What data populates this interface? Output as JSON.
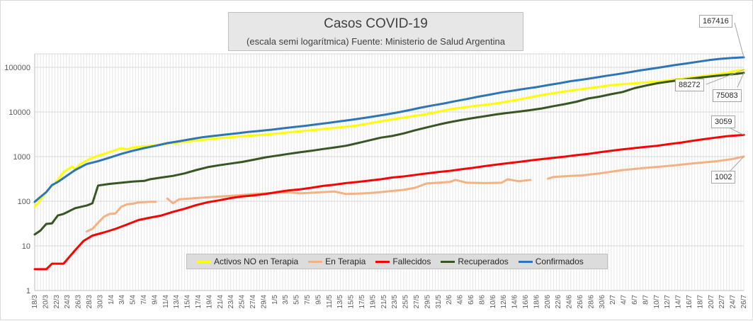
{
  "title": {
    "main": "Casos COVID-19",
    "subtitle": "(escala semi logarítmica) Fuente: Ministerio de Salud Argentina"
  },
  "chart_data": {
    "type": "line",
    "yscale": "log",
    "ylim": [
      1,
      200000
    ],
    "ytick_labels": [
      "1",
      "10",
      "100",
      "1000",
      "10000",
      "100000"
    ],
    "xtick_labels": [
      "18/3",
      "20/3",
      "22/3",
      "24/3",
      "26/3",
      "28/3",
      "30/3",
      "1/4",
      "3/4",
      "5/4",
      "7/4",
      "9/4",
      "11/4",
      "13/4",
      "15/4",
      "17/4",
      "19/4",
      "21/4",
      "23/4",
      "25/4",
      "27/4",
      "29/4",
      "1/5",
      "3/5",
      "5/5",
      "7/5",
      "9/5",
      "11/5",
      "13/5",
      "15/5",
      "17/5",
      "19/5",
      "21/5",
      "23/5",
      "25/5",
      "27/5",
      "29/5",
      "31/5",
      "2/6",
      "4/6",
      "6/6",
      "8/6",
      "10/6",
      "12/6",
      "14/6",
      "16/6",
      "18/6",
      "20/6",
      "22/6",
      "24/6",
      "26/6",
      "28/6",
      "30/6",
      "2/7",
      "4/7",
      "6/7",
      "8/7",
      "10/7",
      "12/7",
      "14/7",
      "16/7",
      "18/7",
      "20/7",
      "22/7",
      "24/7",
      "26/7"
    ],
    "grid": true,
    "legend_position": "bottom",
    "series": [
      {
        "name": "Activos NO en Terapia",
        "color": "#ffff00",
        "points": [
          [
            0,
            75
          ],
          [
            2,
            110
          ],
          [
            5,
            190
          ],
          [
            7,
            250
          ],
          [
            10,
            450
          ],
          [
            13,
            600
          ],
          [
            14,
            520
          ],
          [
            16,
            700
          ],
          [
            20,
            950
          ],
          [
            24,
            1150
          ],
          [
            28,
            1400
          ],
          [
            30,
            1550
          ],
          [
            32,
            1450
          ],
          [
            34,
            1600
          ],
          [
            40,
            1750
          ],
          [
            48,
            2000
          ],
          [
            56,
            2300
          ],
          [
            64,
            2600
          ],
          [
            72,
            2850
          ],
          [
            80,
            3100
          ],
          [
            88,
            3500
          ],
          [
            96,
            3900
          ],
          [
            104,
            4400
          ],
          [
            112,
            5000
          ],
          [
            120,
            6200
          ],
          [
            128,
            7500
          ],
          [
            136,
            9000
          ],
          [
            144,
            11500
          ],
          [
            152,
            13500
          ],
          [
            160,
            15500
          ],
          [
            168,
            19000
          ],
          [
            176,
            24000
          ],
          [
            184,
            29000
          ],
          [
            192,
            34000
          ],
          [
            200,
            40000
          ],
          [
            208,
            44000
          ],
          [
            216,
            48000
          ],
          [
            224,
            55000
          ],
          [
            232,
            64000
          ],
          [
            240,
            75000
          ],
          [
            244,
            85000
          ],
          [
            246,
            88272
          ]
        ],
        "end_label": "88272"
      },
      {
        "name": "En Terapia",
        "color": "#f4b183",
        "points": [
          [
            18,
            21
          ],
          [
            20,
            24
          ],
          [
            22,
            33
          ],
          [
            24,
            45
          ],
          [
            26,
            52
          ],
          [
            28,
            53
          ],
          [
            30,
            75
          ],
          [
            32,
            85
          ],
          [
            34,
            88
          ],
          [
            36,
            94
          ],
          [
            40,
            97
          ],
          [
            42,
            97
          ],
          [
            null,
            null
          ],
          [
            46,
            115
          ],
          [
            48,
            90
          ],
          [
            50,
            110
          ],
          [
            56,
            118
          ],
          [
            62,
            125
          ],
          [
            68,
            132
          ],
          [
            72,
            138
          ],
          [
            76,
            145
          ],
          [
            80,
            150
          ],
          [
            84,
            155
          ],
          [
            88,
            160
          ],
          [
            92,
            150
          ],
          [
            96,
            155
          ],
          [
            100,
            160
          ],
          [
            104,
            165
          ],
          [
            108,
            145
          ],
          [
            112,
            148
          ],
          [
            116,
            152
          ],
          [
            120,
            160
          ],
          [
            124,
            170
          ],
          [
            128,
            180
          ],
          [
            132,
            200
          ],
          [
            136,
            250
          ],
          [
            140,
            260
          ],
          [
            144,
            270
          ],
          [
            146,
            300
          ],
          [
            150,
            260
          ],
          [
            156,
            255
          ],
          [
            162,
            260
          ],
          [
            164,
            310
          ],
          [
            168,
            280
          ],
          [
            172,
            300
          ],
          [
            null,
            null
          ],
          [
            178,
            320
          ],
          [
            180,
            350
          ],
          [
            186,
            370
          ],
          [
            190,
            380
          ],
          [
            196,
            420
          ],
          [
            204,
            500
          ],
          [
            212,
            560
          ],
          [
            220,
            620
          ],
          [
            228,
            700
          ],
          [
            236,
            780
          ],
          [
            242,
            880
          ],
          [
            246,
            1002
          ]
        ],
        "end_label": "1002"
      },
      {
        "name": "Fallecidos",
        "color": "#ff0000",
        "points": [
          [
            0,
            3
          ],
          [
            4,
            3
          ],
          [
            6,
            4
          ],
          [
            10,
            4
          ],
          [
            14,
            8
          ],
          [
            17,
            13
          ],
          [
            20,
            17
          ],
          [
            24,
            20
          ],
          [
            28,
            24
          ],
          [
            32,
            30
          ],
          [
            36,
            38
          ],
          [
            40,
            43
          ],
          [
            44,
            48
          ],
          [
            48,
            58
          ],
          [
            52,
            68
          ],
          [
            56,
            82
          ],
          [
            60,
            95
          ],
          [
            64,
            105
          ],
          [
            68,
            118
          ],
          [
            72,
            128
          ],
          [
            76,
            135
          ],
          [
            80,
            145
          ],
          [
            84,
            160
          ],
          [
            88,
            175
          ],
          [
            92,
            185
          ],
          [
            96,
            200
          ],
          [
            100,
            220
          ],
          [
            104,
            235
          ],
          [
            108,
            255
          ],
          [
            112,
            270
          ],
          [
            116,
            290
          ],
          [
            120,
            310
          ],
          [
            124,
            340
          ],
          [
            128,
            360
          ],
          [
            132,
            390
          ],
          [
            136,
            420
          ],
          [
            140,
            450
          ],
          [
            144,
            480
          ],
          [
            148,
            520
          ],
          [
            152,
            560
          ],
          [
            156,
            610
          ],
          [
            160,
            660
          ],
          [
            164,
            710
          ],
          [
            168,
            760
          ],
          [
            172,
            820
          ],
          [
            176,
            880
          ],
          [
            180,
            940
          ],
          [
            184,
            1000
          ],
          [
            188,
            1080
          ],
          [
            192,
            1150
          ],
          [
            196,
            1250
          ],
          [
            200,
            1350
          ],
          [
            204,
            1450
          ],
          [
            208,
            1550
          ],
          [
            212,
            1650
          ],
          [
            216,
            1750
          ],
          [
            220,
            1900
          ],
          [
            224,
            2050
          ],
          [
            228,
            2250
          ],
          [
            232,
            2450
          ],
          [
            236,
            2650
          ],
          [
            240,
            2850
          ],
          [
            246,
            3059
          ]
        ],
        "end_label": "3059"
      },
      {
        "name": "Recuperados",
        "color": "#375623",
        "points": [
          [
            0,
            18
          ],
          [
            2,
            22
          ],
          [
            4,
            31
          ],
          [
            6,
            32
          ],
          [
            8,
            48
          ],
          [
            10,
            52
          ],
          [
            14,
            70
          ],
          [
            18,
            80
          ],
          [
            20,
            90
          ],
          [
            22,
            225
          ],
          [
            26,
            245
          ],
          [
            30,
            260
          ],
          [
            34,
            275
          ],
          [
            38,
            285
          ],
          [
            40,
            310
          ],
          [
            44,
            340
          ],
          [
            48,
            370
          ],
          [
            52,
            420
          ],
          [
            56,
            500
          ],
          [
            60,
            580
          ],
          [
            64,
            640
          ],
          [
            68,
            700
          ],
          [
            72,
            760
          ],
          [
            76,
            850
          ],
          [
            80,
            960
          ],
          [
            84,
            1050
          ],
          [
            88,
            1150
          ],
          [
            92,
            1250
          ],
          [
            96,
            1350
          ],
          [
            100,
            1480
          ],
          [
            104,
            1600
          ],
          [
            108,
            1750
          ],
          [
            112,
            2000
          ],
          [
            116,
            2300
          ],
          [
            120,
            2650
          ],
          [
            124,
            2900
          ],
          [
            128,
            3300
          ],
          [
            132,
            3900
          ],
          [
            136,
            4500
          ],
          [
            140,
            5200
          ],
          [
            144,
            5900
          ],
          [
            148,
            6600
          ],
          [
            152,
            7300
          ],
          [
            156,
            8000
          ],
          [
            160,
            8800
          ],
          [
            164,
            9500
          ],
          [
            168,
            10200
          ],
          [
            172,
            11000
          ],
          [
            176,
            12000
          ],
          [
            180,
            13500
          ],
          [
            184,
            15000
          ],
          [
            188,
            17000
          ],
          [
            192,
            20000
          ],
          [
            196,
            22000
          ],
          [
            200,
            25000
          ],
          [
            204,
            28000
          ],
          [
            208,
            34000
          ],
          [
            212,
            39000
          ],
          [
            216,
            44000
          ],
          [
            220,
            48000
          ],
          [
            224,
            52000
          ],
          [
            228,
            56000
          ],
          [
            232,
            60000
          ],
          [
            236,
            64000
          ],
          [
            240,
            68000
          ],
          [
            244,
            72000
          ],
          [
            246,
            75083
          ]
        ],
        "end_label": "75083"
      },
      {
        "name": "Confirmados",
        "color": "#2e75b6",
        "points": [
          [
            0,
            97
          ],
          [
            2,
            125
          ],
          [
            4,
            160
          ],
          [
            6,
            230
          ],
          [
            8,
            270
          ],
          [
            10,
            330
          ],
          [
            14,
            500
          ],
          [
            18,
            680
          ],
          [
            22,
            790
          ],
          [
            26,
            950
          ],
          [
            30,
            1150
          ],
          [
            34,
            1350
          ],
          [
            38,
            1550
          ],
          [
            42,
            1750
          ],
          [
            46,
            2000
          ],
          [
            50,
            2200
          ],
          [
            54,
            2450
          ],
          [
            58,
            2700
          ],
          [
            62,
            2900
          ],
          [
            66,
            3100
          ],
          [
            70,
            3300
          ],
          [
            74,
            3550
          ],
          [
            78,
            3750
          ],
          [
            82,
            4000
          ],
          [
            86,
            4300
          ],
          [
            90,
            4600
          ],
          [
            94,
            4900
          ],
          [
            98,
            5300
          ],
          [
            102,
            5700
          ],
          [
            106,
            6200
          ],
          [
            110,
            6700
          ],
          [
            114,
            7300
          ],
          [
            118,
            8000
          ],
          [
            122,
            8800
          ],
          [
            126,
            9800
          ],
          [
            130,
            11000
          ],
          [
            134,
            12500
          ],
          [
            138,
            14000
          ],
          [
            142,
            15500
          ],
          [
            146,
            17500
          ],
          [
            150,
            19500
          ],
          [
            154,
            22000
          ],
          [
            158,
            24500
          ],
          [
            162,
            27500
          ],
          [
            166,
            30000
          ],
          [
            170,
            33000
          ],
          [
            174,
            36000
          ],
          [
            178,
            40000
          ],
          [
            182,
            44000
          ],
          [
            186,
            49000
          ],
          [
            190,
            53000
          ],
          [
            194,
            58000
          ],
          [
            198,
            64000
          ],
          [
            202,
            70000
          ],
          [
            206,
            77000
          ],
          [
            210,
            85000
          ],
          [
            214,
            93000
          ],
          [
            218,
            102000
          ],
          [
            222,
            112000
          ],
          [
            226,
            122000
          ],
          [
            230,
            133000
          ],
          [
            234,
            145000
          ],
          [
            238,
            155000
          ],
          [
            242,
            162000
          ],
          [
            246,
            167416
          ]
        ],
        "end_label": "167416"
      }
    ]
  }
}
